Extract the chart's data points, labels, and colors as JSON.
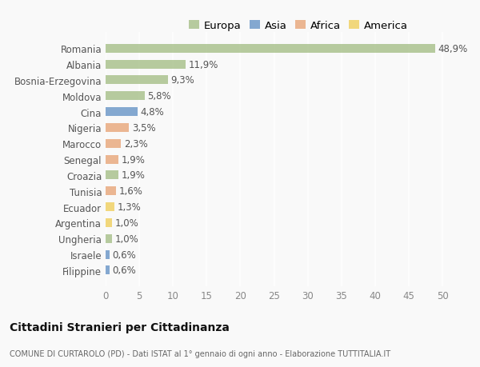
{
  "countries": [
    "Romania",
    "Albania",
    "Bosnia-Erzegovina",
    "Moldova",
    "Cina",
    "Nigeria",
    "Marocco",
    "Senegal",
    "Croazia",
    "Tunisia",
    "Ecuador",
    "Argentina",
    "Ungheria",
    "Israele",
    "Filippine"
  ],
  "values": [
    48.9,
    11.9,
    9.3,
    5.8,
    4.8,
    3.5,
    2.3,
    1.9,
    1.9,
    1.6,
    1.3,
    1.0,
    1.0,
    0.6,
    0.6
  ],
  "labels": [
    "48,9%",
    "11,9%",
    "9,3%",
    "5,8%",
    "4,8%",
    "3,5%",
    "2,3%",
    "1,9%",
    "1,9%",
    "1,6%",
    "1,3%",
    "1,0%",
    "1,0%",
    "0,6%",
    "0,6%"
  ],
  "continents": [
    "Europa",
    "Europa",
    "Europa",
    "Europa",
    "Asia",
    "Africa",
    "Africa",
    "Africa",
    "Europa",
    "Africa",
    "America",
    "America",
    "Europa",
    "Asia",
    "Asia"
  ],
  "colors": {
    "Europa": "#a8c08a",
    "Asia": "#6b96c8",
    "Africa": "#e8a87c",
    "America": "#f0d060"
  },
  "legend_order": [
    "Europa",
    "Asia",
    "Africa",
    "America"
  ],
  "legend_colors": [
    "#a8c08a",
    "#6b96c8",
    "#e8a87c",
    "#f0d060"
  ],
  "xlim": [
    0,
    52
  ],
  "xticks": [
    0,
    5,
    10,
    15,
    20,
    25,
    30,
    35,
    40,
    45,
    50
  ],
  "title": "Cittadini Stranieri per Cittadinanza",
  "subtitle": "COMUNE DI CURTAROLO (PD) - Dati ISTAT al 1° gennaio di ogni anno - Elaborazione TUTTITALIA.IT",
  "bg_color": "#f9f9f9",
  "bar_alpha": 0.82,
  "grid_color": "#ffffff",
  "label_fontsize": 8.5,
  "tick_fontsize": 8.5,
  "legend_fontsize": 9.5
}
